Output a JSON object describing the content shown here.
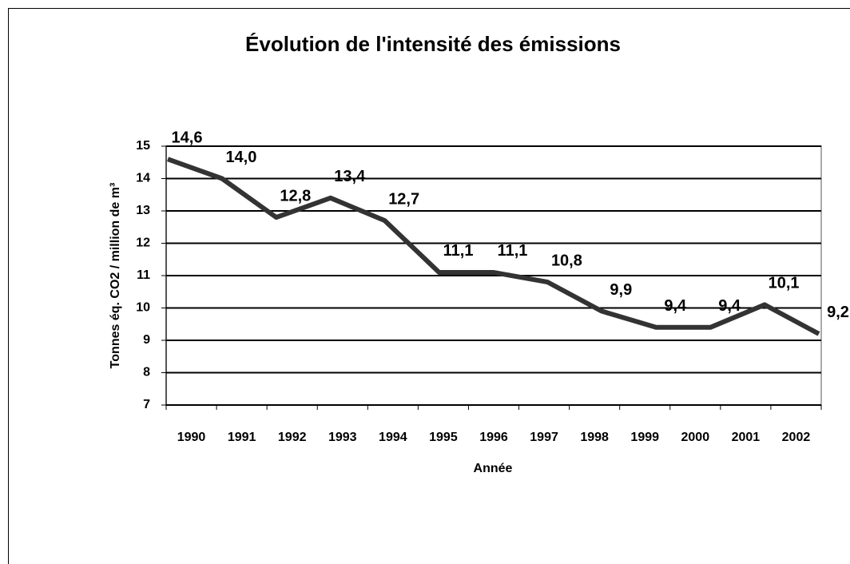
{
  "chart_data": {
    "type": "line",
    "title": "Évolution de l'intensité des émissions",
    "y_label": "Tonnes éq. CO2 / million de m³",
    "x_label": "Année",
    "categories": [
      "1990",
      "1991",
      "1992",
      "1993",
      "1994",
      "1995",
      "1996",
      "1997",
      "1998",
      "1999",
      "2000",
      "2001",
      "2002"
    ],
    "values": [
      14.6,
      14.0,
      12.8,
      13.4,
      12.7,
      11.1,
      11.1,
      10.8,
      9.9,
      9.4,
      9.4,
      10.1,
      9.2
    ],
    "value_labels": [
      "14,6",
      "14,0",
      "12,8",
      "13,4",
      "12,7",
      "11,1",
      "11,1",
      "10,8",
      "9,9",
      "9,4",
      "9,4",
      "10,1",
      "9,2"
    ],
    "color": "#333333",
    "ylim": [
      7,
      15
    ],
    "yticks": [
      7,
      8,
      9,
      10,
      11,
      12,
      13,
      14,
      15
    ],
    "grid": true
  }
}
